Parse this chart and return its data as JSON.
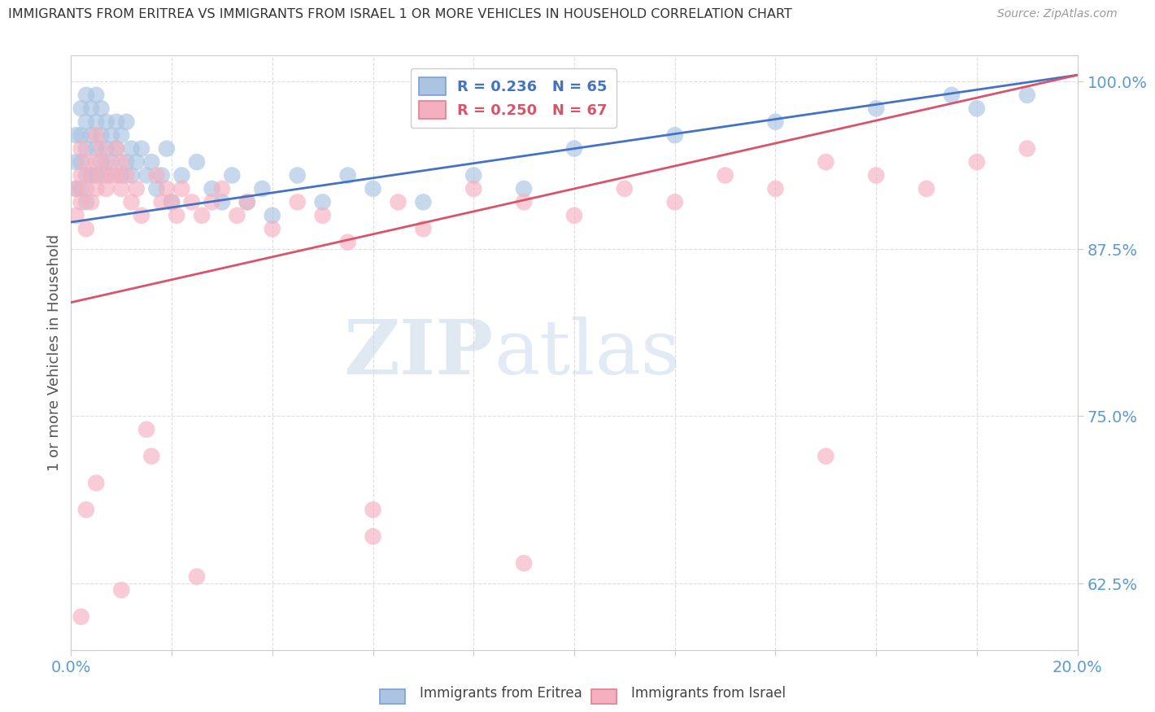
{
  "title": "IMMIGRANTS FROM ERITREA VS IMMIGRANTS FROM ISRAEL 1 OR MORE VEHICLES IN HOUSEHOLD CORRELATION CHART",
  "source": "Source: ZipAtlas.com",
  "ylabel": "1 or more Vehicles in Household",
  "xlim": [
    0.0,
    0.2
  ],
  "ylim": [
    0.575,
    1.02
  ],
  "yticks": [
    0.625,
    0.75,
    0.875,
    1.0
  ],
  "yticklabels": [
    "62.5%",
    "75.0%",
    "87.5%",
    "100.0%"
  ],
  "eritrea_color": "#aac4e2",
  "israel_color": "#f5b0c0",
  "eritrea_line_color": "#4472c4",
  "israel_line_color": "#d9536a",
  "eritrea_R": 0.236,
  "eritrea_N": 65,
  "israel_R": 0.25,
  "israel_N": 67,
  "background_color": "#ffffff",
  "eritrea_line_y0": 0.895,
  "eritrea_line_y1": 1.005,
  "israel_line_y0": 0.835,
  "israel_line_y1": 1.005,
  "eritrea_x": [
    0.001,
    0.001,
    0.001,
    0.002,
    0.002,
    0.002,
    0.002,
    0.003,
    0.003,
    0.003,
    0.003,
    0.003,
    0.004,
    0.004,
    0.004,
    0.005,
    0.005,
    0.005,
    0.005,
    0.006,
    0.006,
    0.006,
    0.007,
    0.007,
    0.007,
    0.008,
    0.008,
    0.009,
    0.009,
    0.01,
    0.01,
    0.011,
    0.011,
    0.012,
    0.012,
    0.013,
    0.014,
    0.015,
    0.016,
    0.017,
    0.018,
    0.019,
    0.02,
    0.022,
    0.025,
    0.028,
    0.03,
    0.032,
    0.035,
    0.038,
    0.04,
    0.045,
    0.05,
    0.055,
    0.06,
    0.07,
    0.08,
    0.09,
    0.1,
    0.12,
    0.14,
    0.16,
    0.175,
    0.18,
    0.19
  ],
  "eritrea_y": [
    0.96,
    0.94,
    0.92,
    0.98,
    0.96,
    0.94,
    0.92,
    0.99,
    0.97,
    0.95,
    0.93,
    0.91,
    0.98,
    0.96,
    0.93,
    0.99,
    0.97,
    0.95,
    0.93,
    0.98,
    0.96,
    0.94,
    0.97,
    0.95,
    0.93,
    0.96,
    0.94,
    0.97,
    0.95,
    0.96,
    0.93,
    0.97,
    0.94,
    0.95,
    0.93,
    0.94,
    0.95,
    0.93,
    0.94,
    0.92,
    0.93,
    0.95,
    0.91,
    0.93,
    0.94,
    0.92,
    0.91,
    0.93,
    0.91,
    0.92,
    0.9,
    0.93,
    0.91,
    0.93,
    0.92,
    0.91,
    0.93,
    0.92,
    0.95,
    0.96,
    0.97,
    0.98,
    0.99,
    0.98,
    0.99
  ],
  "israel_x": [
    0.001,
    0.001,
    0.002,
    0.002,
    0.002,
    0.003,
    0.003,
    0.003,
    0.004,
    0.004,
    0.005,
    0.005,
    0.005,
    0.006,
    0.006,
    0.007,
    0.007,
    0.008,
    0.009,
    0.009,
    0.01,
    0.01,
    0.011,
    0.012,
    0.013,
    0.014,
    0.015,
    0.016,
    0.017,
    0.018,
    0.019,
    0.02,
    0.021,
    0.022,
    0.024,
    0.026,
    0.028,
    0.03,
    0.033,
    0.035,
    0.04,
    0.045,
    0.05,
    0.055,
    0.06,
    0.065,
    0.07,
    0.08,
    0.09,
    0.1,
    0.11,
    0.12,
    0.13,
    0.14,
    0.15,
    0.16,
    0.17,
    0.18,
    0.19,
    0.06,
    0.15,
    0.09,
    0.025,
    0.01,
    0.005,
    0.003,
    0.002
  ],
  "israel_y": [
    0.92,
    0.9,
    0.95,
    0.93,
    0.91,
    0.94,
    0.92,
    0.89,
    0.93,
    0.91,
    0.96,
    0.94,
    0.92,
    0.95,
    0.93,
    0.94,
    0.92,
    0.93,
    0.95,
    0.93,
    0.94,
    0.92,
    0.93,
    0.91,
    0.92,
    0.9,
    0.74,
    0.72,
    0.93,
    0.91,
    0.92,
    0.91,
    0.9,
    0.92,
    0.91,
    0.9,
    0.91,
    0.92,
    0.9,
    0.91,
    0.89,
    0.91,
    0.9,
    0.88,
    0.66,
    0.91,
    0.89,
    0.92,
    0.91,
    0.9,
    0.92,
    0.91,
    0.93,
    0.92,
    0.94,
    0.93,
    0.92,
    0.94,
    0.95,
    0.68,
    0.72,
    0.64,
    0.63,
    0.62,
    0.7,
    0.68,
    0.6
  ]
}
